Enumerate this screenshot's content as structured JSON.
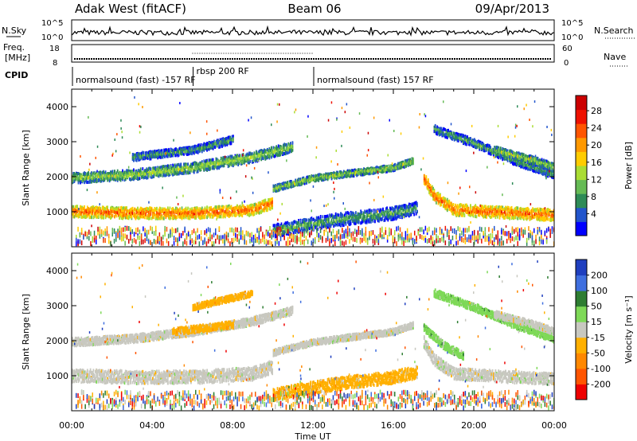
{
  "header": {
    "site": "Adak West (fitACF)",
    "beam": "Beam 06",
    "date": "09/Apr/2013"
  },
  "top_panels": {
    "nsky": {
      "label": "N.Sky",
      "ticks": [
        "10^5",
        "10^0"
      ],
      "right_ticks": [
        "10^5",
        "10^0"
      ],
      "right_label": "N.Search"
    },
    "freq": {
      "label_line1": "Freq.",
      "label_line2": "[MHz]",
      "ticks": [
        "18",
        "8"
      ],
      "right_ticks": [
        "60",
        "0"
      ],
      "right_label": "Nave"
    },
    "cpid": {
      "label": "CPID",
      "segments": [
        {
          "name": "normalsound (fast) -157 RF",
          "start_hour": 0,
          "end_hour": 6.0
        },
        {
          "name": "rbsp 200 RF",
          "start_hour": 6.0,
          "end_hour": 12.0
        },
        {
          "name": "normalsound (fast) 157 RF",
          "start_hour": 12.0,
          "end_hour": 24
        }
      ]
    }
  },
  "chart_data": [
    {
      "type": "heatmap",
      "name": "power",
      "ylabel": "Slant Range [km]",
      "ylim": [
        0,
        4500
      ],
      "yticks": [
        1000,
        2000,
        3000,
        4000
      ],
      "xlim": [
        0,
        24
      ],
      "colorbar": {
        "label": "Power [dB]",
        "ticks": [
          "4",
          "8",
          "12",
          "16",
          "20",
          "24",
          "28"
        ],
        "colors": [
          "#0000ff",
          "#2255cc",
          "#2e8b57",
          "#66bb55",
          "#aadd33",
          "#ffcc00",
          "#ff9900",
          "#ff5500",
          "#ee1100",
          "#cc0000"
        ]
      },
      "bands": [
        {
          "x": [
            0,
            3,
            6,
            9,
            10
          ],
          "y_km": [
            1050,
            1000,
            1000,
            1100,
            1300
          ],
          "width_km": 220,
          "level": 7
        },
        {
          "x": [
            10,
            12,
            16,
            17
          ],
          "y_km": [
            1700,
            2000,
            2300,
            2500
          ],
          "width_km": 120,
          "level": 4
        },
        {
          "x": [
            0,
            3,
            6,
            9,
            11
          ],
          "y_km": [
            2000,
            2100,
            2300,
            2600,
            2900
          ],
          "width_km": 200,
          "level": 4
        },
        {
          "x": [
            3,
            6,
            8
          ],
          "y_km": [
            2600,
            2800,
            3100
          ],
          "width_km": 150,
          "level": 3
        },
        {
          "x": [
            10,
            13,
            16,
            17.2
          ],
          "y_km": [
            500,
            800,
            1000,
            1150
          ],
          "width_km": 250,
          "level": 3
        },
        {
          "x": [
            17.5,
            18,
            19,
            22,
            24
          ],
          "y_km": [
            2000,
            1500,
            1100,
            1000,
            950
          ],
          "width_km": 230,
          "level": 7
        },
        {
          "x": [
            18,
            20,
            22,
            24
          ],
          "y_km": [
            3400,
            3000,
            2500,
            2100
          ],
          "width_km": 160,
          "level": 3
        },
        {
          "x": [
            21,
            23,
            24
          ],
          "y_km": [
            2800,
            2500,
            2300
          ],
          "width_km": 150,
          "level": 4
        }
      ]
    },
    {
      "type": "heatmap",
      "name": "velocity",
      "ylabel": "Slant Range [km]",
      "ylim": [
        0,
        4500
      ],
      "yticks": [
        1000,
        2000,
        3000,
        4000
      ],
      "xlim": [
        0,
        24
      ],
      "xticks": [
        "00:00",
        "04:00",
        "08:00",
        "12:00",
        "16:00",
        "20:00",
        "00:00"
      ],
      "xlabel": "Time UT",
      "colorbar": {
        "label": "Velocity [m s⁻¹]",
        "ticks": [
          "200",
          "100",
          "50",
          "15",
          "-15",
          "-50",
          "-100",
          "-200"
        ],
        "colors": [
          "#1f3fbf",
          "#3f6fdf",
          "#2e7d32",
          "#7ed957",
          "#c8c8c0",
          "#ffb000",
          "#ff8800",
          "#ff5500",
          "#ee0000"
        ]
      },
      "bands": [
        {
          "x": [
            0,
            3,
            6,
            9,
            10
          ],
          "y_km": [
            1050,
            1000,
            1000,
            1100,
            1300
          ],
          "width_km": 260,
          "level": 4
        },
        {
          "x": [
            10,
            12,
            16,
            17
          ],
          "y_km": [
            1700,
            2000,
            2300,
            2500
          ],
          "width_km": 120,
          "level": 4
        },
        {
          "x": [
            0,
            3,
            6,
            9,
            11
          ],
          "y_km": [
            2000,
            2100,
            2300,
            2600,
            2900
          ],
          "width_km": 160,
          "level": 4
        },
        {
          "x": [
            5,
            6.5,
            8
          ],
          "y_km": [
            2300,
            2400,
            2500
          ],
          "width_km": 140,
          "level": 5
        },
        {
          "x": [
            6,
            7.5,
            9
          ],
          "y_km": [
            3000,
            3200,
            3400
          ],
          "width_km": 120,
          "level": 5
        },
        {
          "x": [
            10,
            13,
            16,
            17.2
          ],
          "y_km": [
            500,
            800,
            1000,
            1150
          ],
          "width_km": 250,
          "level": 5
        },
        {
          "x": [
            17.5,
            18,
            19,
            22,
            24
          ],
          "y_km": [
            2000,
            1500,
            1100,
            1000,
            950
          ],
          "width_km": 230,
          "level": 4
        },
        {
          "x": [
            17.5,
            18.5,
            19.5
          ],
          "y_km": [
            2400,
            1900,
            1600
          ],
          "width_km": 150,
          "level": 3
        },
        {
          "x": [
            18,
            20,
            22,
            24
          ],
          "y_km": [
            3400,
            3000,
            2500,
            2100
          ],
          "width_km": 150,
          "level": 3
        },
        {
          "x": [
            21,
            23,
            24
          ],
          "y_km": [
            2800,
            2500,
            2300
          ],
          "width_km": 130,
          "level": 4
        }
      ]
    }
  ]
}
